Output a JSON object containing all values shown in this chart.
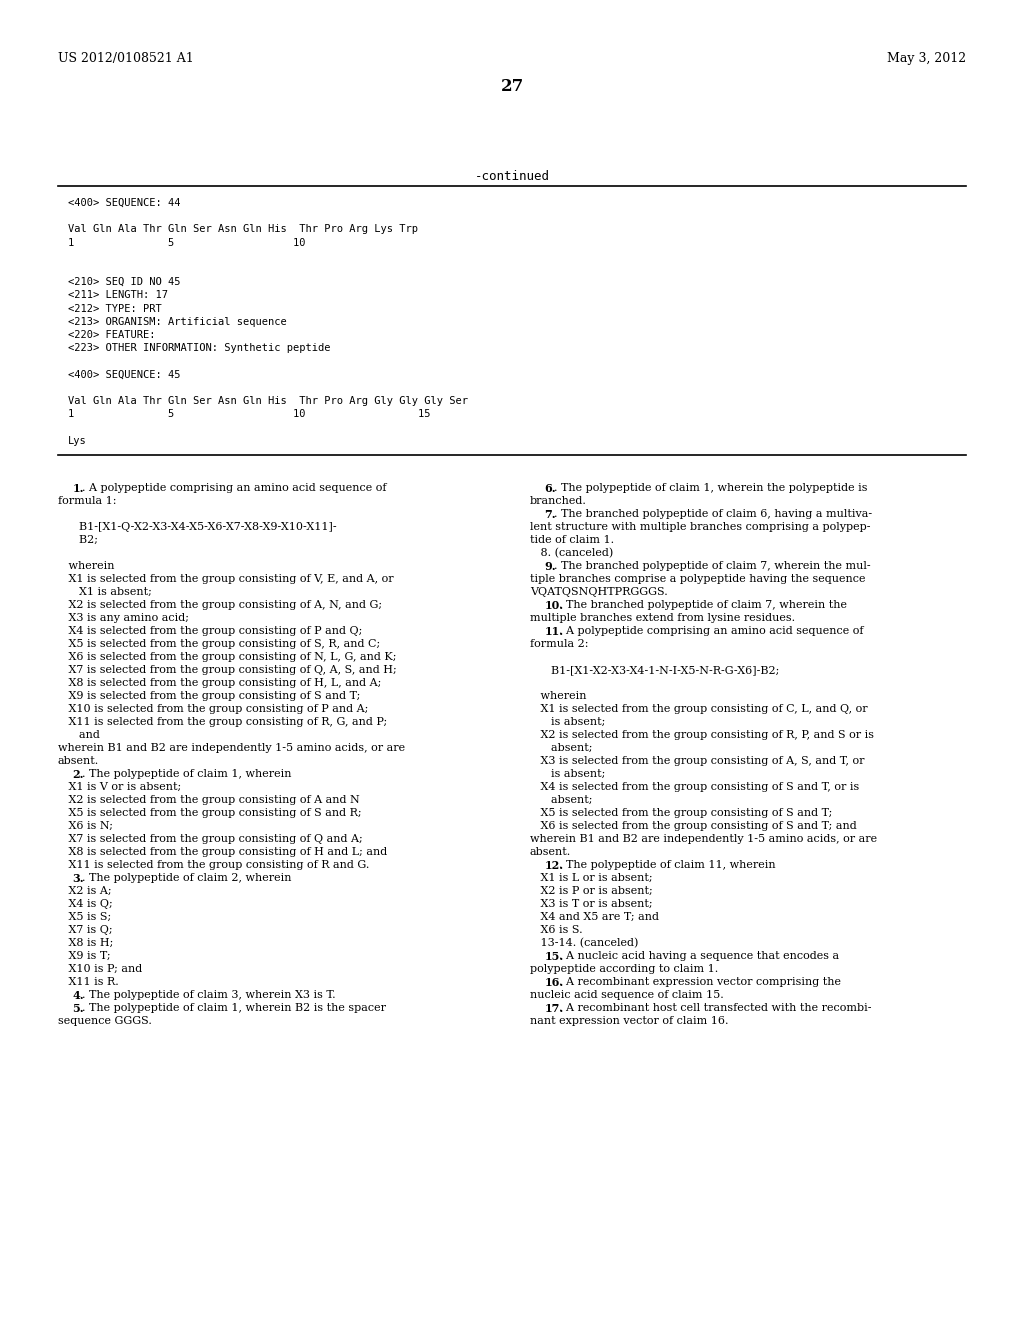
{
  "bg_color": "#ffffff",
  "text_color": "#000000",
  "header_left": "US 2012/0108521 A1",
  "header_right": "May 3, 2012",
  "page_number": "27",
  "continued_label": "-continued",
  "seq_block": [
    "<400> SEQUENCE: 44",
    "",
    "Val Gln Ala Thr Gln Ser Asn Gln His  Thr Pro Arg Lys Trp",
    "1               5                   10",
    "",
    "",
    "<210> SEQ ID NO 45",
    "<211> LENGTH: 17",
    "<212> TYPE: PRT",
    "<213> ORGANISM: Artificial sequence",
    "<220> FEATURE:",
    "<223> OTHER INFORMATION: Synthetic peptide",
    "",
    "<400> SEQUENCE: 45",
    "",
    "Val Gln Ala Thr Gln Ser Asn Gln His  Thr Pro Arg Gly Gly Gly Ser",
    "1               5                   10                  15",
    "",
    "Lys"
  ],
  "left_col": [
    {
      "bold_num": "1",
      "text": ". A polypeptide comprising an amino acid sequence of",
      "indent": 3
    },
    {
      "bold_num": null,
      "text": "formula 1:",
      "indent": 0
    },
    {
      "bold_num": null,
      "text": "",
      "indent": 0
    },
    {
      "bold_num": null,
      "text": "      B1-[X1-Q-X2-X3-X4-X5-X6-X7-X8-X9-X10-X11]-",
      "indent": 0
    },
    {
      "bold_num": null,
      "text": "      B2;",
      "indent": 0
    },
    {
      "bold_num": null,
      "text": "",
      "indent": 0
    },
    {
      "bold_num": null,
      "text": "   wherein",
      "indent": 0
    },
    {
      "bold_num": null,
      "text": "   X1 is selected from the group consisting of V, E, and A, or",
      "indent": 0
    },
    {
      "bold_num": null,
      "text": "      X1 is absent;",
      "indent": 0
    },
    {
      "bold_num": null,
      "text": "   X2 is selected from the group consisting of A, N, and G;",
      "indent": 0
    },
    {
      "bold_num": null,
      "text": "   X3 is any amino acid;",
      "indent": 0
    },
    {
      "bold_num": null,
      "text": "   X4 is selected from the group consisting of P and Q;",
      "indent": 0
    },
    {
      "bold_num": null,
      "text": "   X5 is selected from the group consisting of S, R, and C;",
      "indent": 0
    },
    {
      "bold_num": null,
      "text": "   X6 is selected from the group consisting of N, L, G, and K;",
      "indent": 0
    },
    {
      "bold_num": null,
      "text": "   X7 is selected from the group consisting of Q, A, S, and H;",
      "indent": 0
    },
    {
      "bold_num": null,
      "text": "   X8 is selected from the group consisting of H, L, and A;",
      "indent": 0
    },
    {
      "bold_num": null,
      "text": "   X9 is selected from the group consisting of S and T;",
      "indent": 0
    },
    {
      "bold_num": null,
      "text": "   X10 is selected from the group consisting of P and A;",
      "indent": 0
    },
    {
      "bold_num": null,
      "text": "   X11 is selected from the group consisting of R, G, and P;",
      "indent": 0
    },
    {
      "bold_num": null,
      "text": "      and",
      "indent": 0
    },
    {
      "bold_num": null,
      "text": "wherein B1 and B2 are independently 1-5 amino acids, or are",
      "indent": 0
    },
    {
      "bold_num": null,
      "text": "absent.",
      "indent": 0
    },
    {
      "bold_num": "2",
      "text": ". The polypeptide of claim 1, wherein",
      "indent": 3
    },
    {
      "bold_num": null,
      "text": "   X1 is V or is absent;",
      "indent": 0
    },
    {
      "bold_num": null,
      "text": "   X2 is selected from the group consisting of A and N",
      "indent": 0
    },
    {
      "bold_num": null,
      "text": "   X5 is selected from the group consisting of S and R;",
      "indent": 0
    },
    {
      "bold_num": null,
      "text": "   X6 is N;",
      "indent": 0
    },
    {
      "bold_num": null,
      "text": "   X7 is selected from the group consisting of Q and A;",
      "indent": 0
    },
    {
      "bold_num": null,
      "text": "   X8 is selected from the group consisting of H and L; and",
      "indent": 0
    },
    {
      "bold_num": null,
      "text": "   X11 is selected from the group consisting of R and G.",
      "indent": 0
    },
    {
      "bold_num": "3",
      "text": ". The polypeptide of claim 2, wherein",
      "indent": 3
    },
    {
      "bold_num": null,
      "text": "   X2 is A;",
      "indent": 0
    },
    {
      "bold_num": null,
      "text": "   X4 is Q;",
      "indent": 0
    },
    {
      "bold_num": null,
      "text": "   X5 is S;",
      "indent": 0
    },
    {
      "bold_num": null,
      "text": "   X7 is Q;",
      "indent": 0
    },
    {
      "bold_num": null,
      "text": "   X8 is H;",
      "indent": 0
    },
    {
      "bold_num": null,
      "text": "   X9 is T;",
      "indent": 0
    },
    {
      "bold_num": null,
      "text": "   X10 is P; and",
      "indent": 0
    },
    {
      "bold_num": null,
      "text": "   X11 is R.",
      "indent": 0
    },
    {
      "bold_num": "4",
      "text": ". The polypeptide of claim 3, wherein X3 is T.",
      "indent": 3
    },
    {
      "bold_num": "5",
      "text": ". The polypeptide of claim 1, wherein B2 is the spacer",
      "indent": 3
    },
    {
      "bold_num": null,
      "text": "sequence GGGS.",
      "indent": 0
    }
  ],
  "right_col": [
    {
      "bold_num": "6",
      "text": ". The polypeptide of claim 1, wherein the polypeptide is",
      "indent": 3
    },
    {
      "bold_num": null,
      "text": "branched.",
      "indent": 0
    },
    {
      "bold_num": "7",
      "text": ". The branched polypeptide of claim 6, having a multiva-",
      "indent": 3
    },
    {
      "bold_num": null,
      "text": "lent structure with multiple branches comprising a polypep-",
      "indent": 0
    },
    {
      "bold_num": null,
      "text": "tide of claim 1.",
      "indent": 0
    },
    {
      "bold_num": null,
      "text": "   8. (canceled)",
      "indent": 0
    },
    {
      "bold_num": "9",
      "text": ". The branched polypeptide of claim 7, wherein the mul-",
      "indent": 3
    },
    {
      "bold_num": null,
      "text": "tiple branches comprise a polypeptide having the sequence",
      "indent": 0
    },
    {
      "bold_num": null,
      "text": "VQATQSNQHTPRGGGS.",
      "indent": 0
    },
    {
      "bold_num": "10",
      "text": ". The branched polypeptide of claim 7, wherein the",
      "indent": 3
    },
    {
      "bold_num": null,
      "text": "multiple branches extend from lysine residues.",
      "indent": 0
    },
    {
      "bold_num": "11",
      "text": ". A polypeptide comprising an amino acid sequence of",
      "indent": 3
    },
    {
      "bold_num": null,
      "text": "formula 2:",
      "indent": 0
    },
    {
      "bold_num": null,
      "text": "",
      "indent": 0
    },
    {
      "bold_num": null,
      "text": "      B1-[X1-X2-X3-X4-1-N-I-X5-N-R-G-X6]-B2;",
      "indent": 0
    },
    {
      "bold_num": null,
      "text": "",
      "indent": 0
    },
    {
      "bold_num": null,
      "text": "   wherein",
      "indent": 0
    },
    {
      "bold_num": null,
      "text": "   X1 is selected from the group consisting of C, L, and Q, or",
      "indent": 0
    },
    {
      "bold_num": null,
      "text": "      is absent;",
      "indent": 0
    },
    {
      "bold_num": null,
      "text": "   X2 is selected from the group consisting of R, P, and S or is",
      "indent": 0
    },
    {
      "bold_num": null,
      "text": "      absent;",
      "indent": 0
    },
    {
      "bold_num": null,
      "text": "   X3 is selected from the group consisting of A, S, and T, or",
      "indent": 0
    },
    {
      "bold_num": null,
      "text": "      is absent;",
      "indent": 0
    },
    {
      "bold_num": null,
      "text": "   X4 is selected from the group consisting of S and T, or is",
      "indent": 0
    },
    {
      "bold_num": null,
      "text": "      absent;",
      "indent": 0
    },
    {
      "bold_num": null,
      "text": "   X5 is selected from the group consisting of S and T;",
      "indent": 0
    },
    {
      "bold_num": null,
      "text": "   X6 is selected from the group consisting of S and T; and",
      "indent": 0
    },
    {
      "bold_num": null,
      "text": "wherein B1 and B2 are independently 1-5 amino acids, or are",
      "indent": 0
    },
    {
      "bold_num": null,
      "text": "absent.",
      "indent": 0
    },
    {
      "bold_num": "12",
      "text": ". The polypeptide of claim 11, wherein",
      "indent": 3
    },
    {
      "bold_num": null,
      "text": "   X1 is L or is absent;",
      "indent": 0
    },
    {
      "bold_num": null,
      "text": "   X2 is P or is absent;",
      "indent": 0
    },
    {
      "bold_num": null,
      "text": "   X3 is T or is absent;",
      "indent": 0
    },
    {
      "bold_num": null,
      "text": "   X4 and X5 are T; and",
      "indent": 0
    },
    {
      "bold_num": null,
      "text": "   X6 is S.",
      "indent": 0
    },
    {
      "bold_num": null,
      "text": "   13-14. (canceled)",
      "indent": 0
    },
    {
      "bold_num": "15",
      "text": ". A nucleic acid having a sequence that encodes a",
      "indent": 3
    },
    {
      "bold_num": null,
      "text": "polypeptide according to claim 1.",
      "indent": 0
    },
    {
      "bold_num": "16",
      "text": ". A recombinant expression vector comprising the",
      "indent": 3
    },
    {
      "bold_num": null,
      "text": "nucleic acid sequence of claim 15.",
      "indent": 0
    },
    {
      "bold_num": "17",
      "text": ". A recombinant host cell transfected with the recombi-",
      "indent": 3
    },
    {
      "bold_num": null,
      "text": "nant expression vector of claim 16.",
      "indent": 0
    }
  ]
}
